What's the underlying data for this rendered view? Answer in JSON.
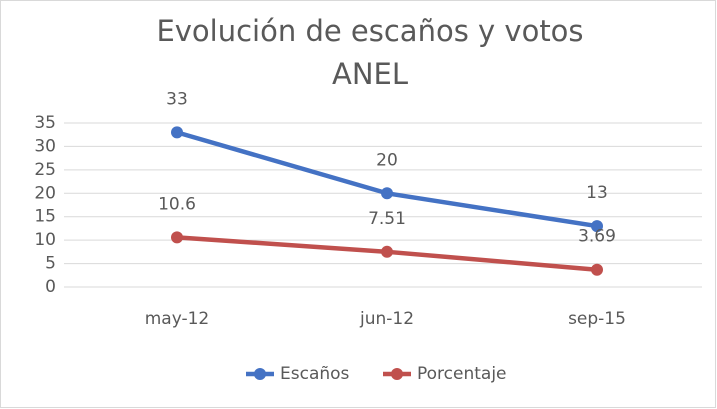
{
  "chart_data": {
    "type": "line",
    "title": [
      "Evolución de escaños y votos",
      "ANEL"
    ],
    "categories": [
      "may-12",
      "jun-12",
      "sep-15"
    ],
    "series": [
      {
        "name": "Escaños",
        "color": "#4472c4",
        "values": [
          33,
          20,
          13
        ]
      },
      {
        "name": "Porcentaje",
        "color": "#c0504d",
        "values": [
          10.6,
          7.51,
          3.69
        ]
      }
    ],
    "ylim": [
      0,
      35
    ],
    "yticks": [
      0,
      5,
      10,
      15,
      20,
      25,
      30,
      35
    ],
    "grid": true,
    "legend": "bottom"
  }
}
